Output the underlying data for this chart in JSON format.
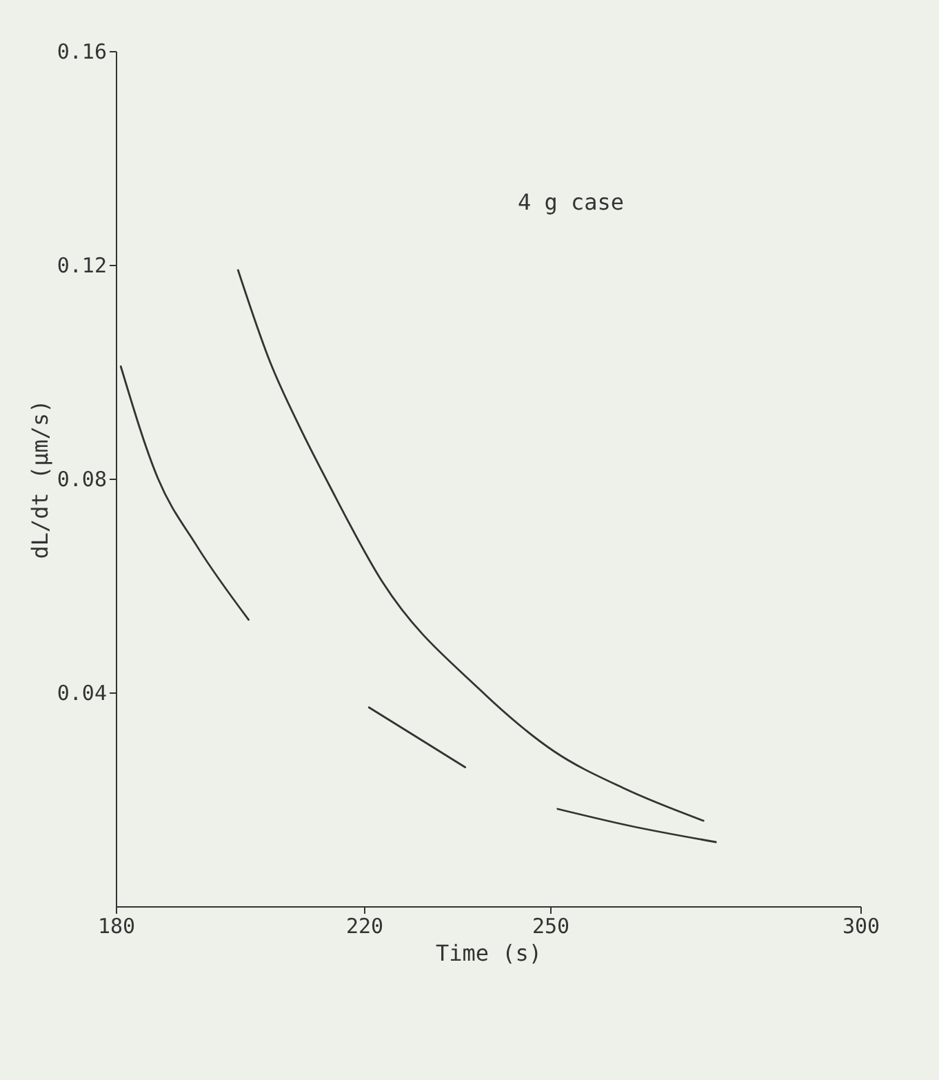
{
  "chart_data": {
    "type": "line",
    "xlabel": "Time (s)",
    "ylabel": "dL/dt (μm/s)",
    "annotations": [
      "4 g case"
    ],
    "xlim": [
      180,
      300
    ],
    "xticks": [
      180,
      220,
      250,
      300
    ],
    "ylim": [
      0,
      0.16
    ],
    "yticks": [
      0.04,
      0.08,
      0.12,
      0.16
    ],
    "grid": false,
    "marker": "none",
    "line_style": "solid",
    "series": [
      {
        "color": "#333333",
        "x": [
          199.7,
          204.8,
          209.7,
          214.3,
          223,
          238.5,
          250.6,
          262,
          274.7
        ],
        "values": [
          0.119,
          0.102,
          0.0895,
          0.079,
          0.0606,
          0.0407,
          0.029,
          0.022,
          0.016
        ]
      },
      {
        "color": "#333333",
        "x": [
          180.8,
          186.8,
          193,
          201.4,
          211,
          220.8,
          228,
          236.3,
          244,
          251.2,
          263,
          276.7
        ],
        "values": [
          0.101,
          0.08,
          0.0675,
          0.0536,
          null,
          0.0372,
          0.032,
          0.026,
          null,
          0.0182,
          0.015,
          0.012
        ]
      }
    ]
  }
}
